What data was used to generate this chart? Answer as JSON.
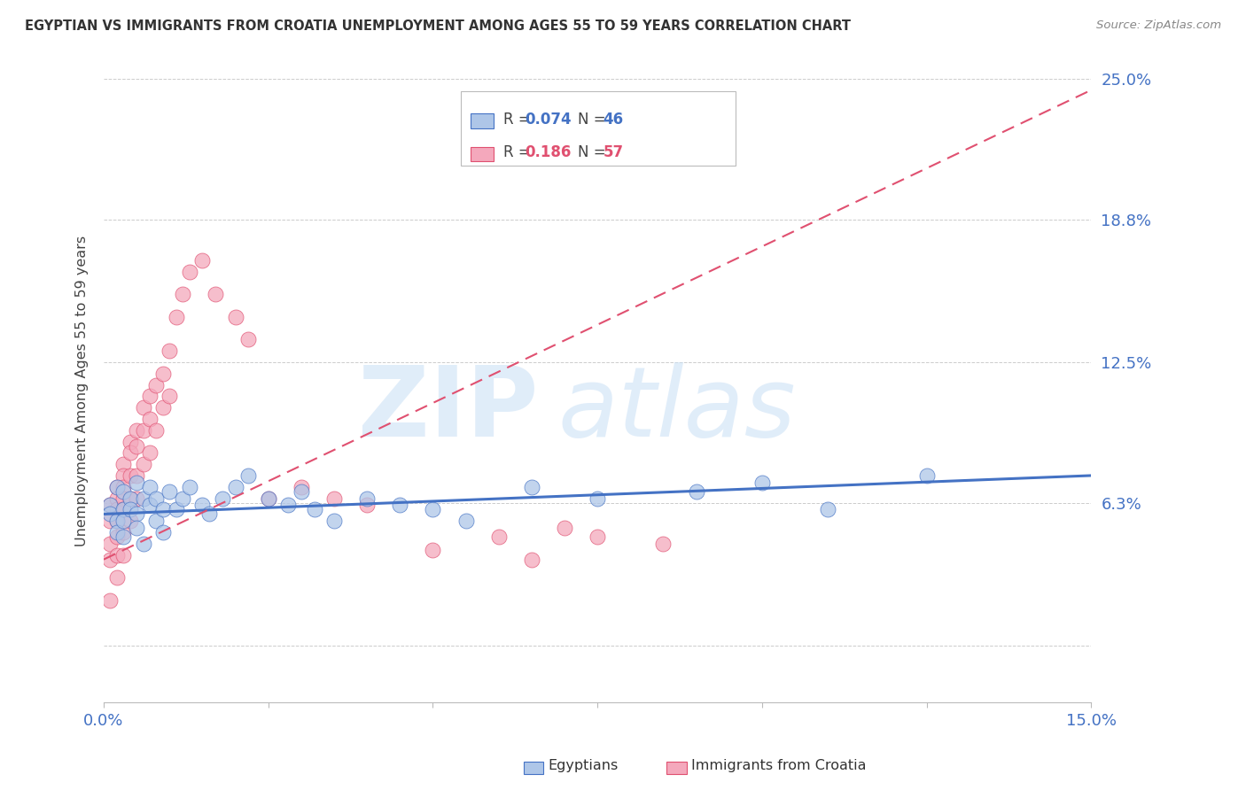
{
  "title": "EGYPTIAN VS IMMIGRANTS FROM CROATIA UNEMPLOYMENT AMONG AGES 55 TO 59 YEARS CORRELATION CHART",
  "source": "Source: ZipAtlas.com",
  "ylabel": "Unemployment Among Ages 55 to 59 years",
  "xmin": 0.0,
  "xmax": 0.15,
  "ymin": -0.025,
  "ymax": 0.25,
  "ytick_vals": [
    0.0,
    0.063,
    0.125,
    0.188,
    0.25
  ],
  "ytick_labels": [
    "",
    "6.3%",
    "12.5%",
    "18.8%",
    "25.0%"
  ],
  "xtick_vals": [
    0.0,
    0.025,
    0.05,
    0.075,
    0.1,
    0.125,
    0.15
  ],
  "xtick_labels": [
    "0.0%",
    "",
    "",
    "",
    "",
    "",
    "15.0%"
  ],
  "legend_r1": "R = 0.074",
  "legend_n1": "N = 46",
  "legend_r2": "R = 0.186",
  "legend_n2": "N = 57",
  "color_egyptian_fill": "#aec6e8",
  "color_egyptian_edge": "#4472c4",
  "color_croatia_fill": "#f4a8bc",
  "color_croatia_edge": "#e05070",
  "color_line_egyptian": "#4472c4",
  "color_line_croatia": "#e05070",
  "color_axis_labels": "#4472c4",
  "color_title": "#333333",
  "background_color": "#ffffff",
  "grid_color": "#cccccc",
  "egyptians_x": [
    0.001,
    0.001,
    0.002,
    0.002,
    0.002,
    0.003,
    0.003,
    0.003,
    0.003,
    0.004,
    0.004,
    0.005,
    0.005,
    0.005,
    0.006,
    0.006,
    0.007,
    0.007,
    0.008,
    0.008,
    0.009,
    0.009,
    0.01,
    0.011,
    0.012,
    0.013,
    0.015,
    0.016,
    0.018,
    0.02,
    0.022,
    0.025,
    0.028,
    0.03,
    0.032,
    0.035,
    0.04,
    0.045,
    0.05,
    0.055,
    0.065,
    0.075,
    0.09,
    0.1,
    0.11,
    0.125
  ],
  "egyptians_y": [
    0.062,
    0.058,
    0.07,
    0.055,
    0.05,
    0.068,
    0.06,
    0.055,
    0.048,
    0.065,
    0.06,
    0.072,
    0.058,
    0.052,
    0.065,
    0.045,
    0.07,
    0.062,
    0.065,
    0.055,
    0.06,
    0.05,
    0.068,
    0.06,
    0.065,
    0.07,
    0.062,
    0.058,
    0.065,
    0.07,
    0.075,
    0.065,
    0.062,
    0.068,
    0.06,
    0.055,
    0.065,
    0.062,
    0.06,
    0.055,
    0.07,
    0.065,
    0.068,
    0.072,
    0.06,
    0.075
  ],
  "croatia_x": [
    0.001,
    0.001,
    0.001,
    0.001,
    0.001,
    0.002,
    0.002,
    0.002,
    0.002,
    0.002,
    0.002,
    0.002,
    0.003,
    0.003,
    0.003,
    0.003,
    0.003,
    0.003,
    0.003,
    0.004,
    0.004,
    0.004,
    0.004,
    0.004,
    0.005,
    0.005,
    0.005,
    0.005,
    0.006,
    0.006,
    0.006,
    0.007,
    0.007,
    0.007,
    0.008,
    0.008,
    0.009,
    0.009,
    0.01,
    0.01,
    0.011,
    0.012,
    0.013,
    0.015,
    0.017,
    0.02,
    0.022,
    0.025,
    0.03,
    0.035,
    0.04,
    0.05,
    0.06,
    0.065,
    0.07,
    0.075,
    0.085
  ],
  "croatia_y": [
    0.062,
    0.055,
    0.045,
    0.038,
    0.02,
    0.07,
    0.065,
    0.06,
    0.055,
    0.048,
    0.04,
    0.03,
    0.08,
    0.075,
    0.07,
    0.065,
    0.06,
    0.05,
    0.04,
    0.09,
    0.085,
    0.075,
    0.065,
    0.055,
    0.095,
    0.088,
    0.075,
    0.065,
    0.105,
    0.095,
    0.08,
    0.11,
    0.1,
    0.085,
    0.115,
    0.095,
    0.12,
    0.105,
    0.13,
    0.11,
    0.145,
    0.155,
    0.165,
    0.17,
    0.155,
    0.145,
    0.135,
    0.065,
    0.07,
    0.065,
    0.062,
    0.042,
    0.048,
    0.038,
    0.052,
    0.048,
    0.045
  ],
  "eg_trend_x0": 0.0,
  "eg_trend_y0": 0.058,
  "eg_trend_x1": 0.15,
  "eg_trend_y1": 0.075,
  "cr_trend_x0": 0.0,
  "cr_trend_y0": 0.038,
  "cr_trend_x1": 0.15,
  "cr_trend_y1": 0.245
}
